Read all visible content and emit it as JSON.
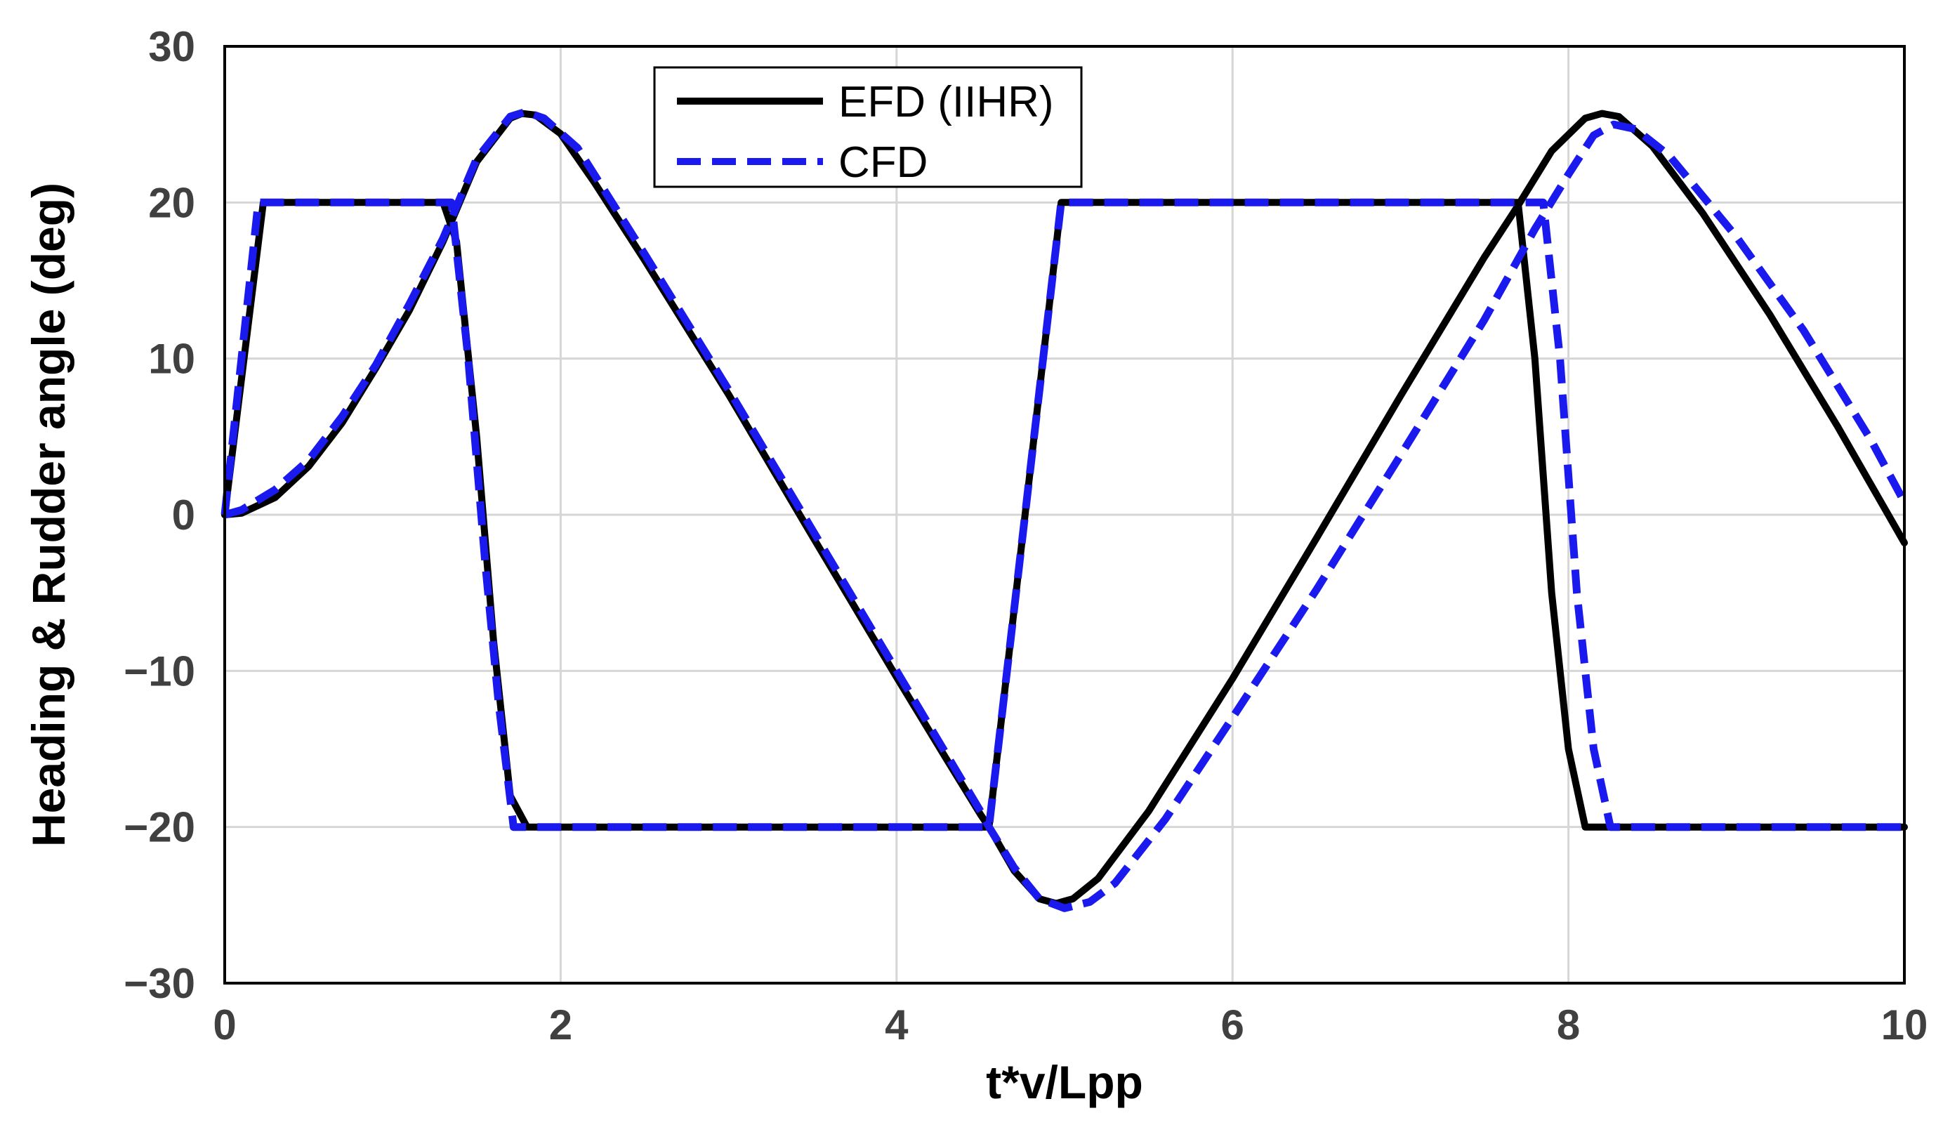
{
  "chart_data": {
    "type": "line",
    "title": "",
    "xlabel": "t*v/Lpp",
    "ylabel": "Heading & Rudder angle (deg)",
    "xlim": [
      0,
      10
    ],
    "ylim": [
      -30,
      30
    ],
    "xticks": [
      0,
      2,
      4,
      6,
      8,
      10
    ],
    "yticks": [
      -30,
      -20,
      -10,
      0,
      10,
      20,
      30
    ],
    "xtick_labels": [
      "0",
      "2",
      "4",
      "6",
      "8",
      "10"
    ],
    "ytick_labels": [
      "−30",
      "−20",
      "−10",
      "0",
      "10",
      "20",
      "30"
    ],
    "grid": true,
    "legend_position": "top-center",
    "legend": [
      {
        "label": "EFD (IIHR)",
        "color": "#000000",
        "style": "solid"
      },
      {
        "label": "CFD",
        "color": "#1a1aee",
        "style": "dashed"
      }
    ],
    "series": [
      {
        "name": "EFD (IIHR)",
        "kind": "heading",
        "color": "#000000",
        "style": "solid",
        "points": [
          [
            0,
            0
          ],
          [
            0.1,
            0.1
          ],
          [
            0.3,
            1.1
          ],
          [
            0.5,
            3.1
          ],
          [
            0.7,
            5.9
          ],
          [
            0.9,
            9.4
          ],
          [
            1.1,
            13.1
          ],
          [
            1.3,
            17.5
          ],
          [
            1.5,
            22.6
          ],
          [
            1.7,
            25.4
          ],
          [
            1.77,
            25.7
          ],
          [
            1.85,
            25.6
          ],
          [
            2.0,
            24.4
          ],
          [
            2.2,
            21.3
          ],
          [
            2.5,
            16.3
          ],
          [
            3.0,
            7.7
          ],
          [
            3.5,
            -1.4
          ],
          [
            4.0,
            -10.4
          ],
          [
            4.3,
            -15.7
          ],
          [
            4.5,
            -19.2
          ],
          [
            4.55,
            -20.0
          ],
          [
            4.7,
            -22.8
          ],
          [
            4.85,
            -24.6
          ],
          [
            4.95,
            -24.9
          ],
          [
            5.05,
            -24.6
          ],
          [
            5.2,
            -23.3
          ],
          [
            5.5,
            -19.0
          ],
          [
            6.0,
            -10.5
          ],
          [
            6.5,
            -1.5
          ],
          [
            7.0,
            7.6
          ],
          [
            7.5,
            16.5
          ],
          [
            7.7,
            19.8
          ],
          [
            7.9,
            23.3
          ],
          [
            8.1,
            25.4
          ],
          [
            8.2,
            25.7
          ],
          [
            8.3,
            25.5
          ],
          [
            8.5,
            23.6
          ],
          [
            8.8,
            19.3
          ],
          [
            9.2,
            12.8
          ],
          [
            9.6,
            5.7
          ],
          [
            10.0,
            -1.8
          ]
        ]
      },
      {
        "name": "EFD (IIHR)",
        "kind": "rudder",
        "color": "#000000",
        "style": "solid",
        "points": [
          [
            0,
            0
          ],
          [
            0.23,
            20
          ],
          [
            1.3,
            20
          ],
          [
            1.38,
            17.5
          ],
          [
            1.5,
            5
          ],
          [
            1.6,
            -8
          ],
          [
            1.7,
            -18
          ],
          [
            1.8,
            -20
          ],
          [
            4.55,
            -20
          ],
          [
            4.98,
            20
          ],
          [
            7.7,
            20
          ],
          [
            7.8,
            10
          ],
          [
            7.9,
            -5
          ],
          [
            8.0,
            -15
          ],
          [
            8.1,
            -20
          ],
          [
            10.0,
            -20
          ]
        ]
      },
      {
        "name": "CFD",
        "kind": "heading",
        "color": "#1a1aee",
        "style": "dashed",
        "points": [
          [
            0,
            0
          ],
          [
            0.1,
            0.3
          ],
          [
            0.3,
            1.6
          ],
          [
            0.5,
            3.5
          ],
          [
            0.7,
            6.3
          ],
          [
            0.9,
            9.6
          ],
          [
            1.1,
            13.5
          ],
          [
            1.3,
            17.7
          ],
          [
            1.5,
            22.8
          ],
          [
            1.7,
            25.5
          ],
          [
            1.79,
            25.8
          ],
          [
            1.9,
            25.4
          ],
          [
            2.1,
            23.5
          ],
          [
            2.5,
            16.7
          ],
          [
            3.0,
            8.0
          ],
          [
            3.5,
            -1.0
          ],
          [
            4.0,
            -10.0
          ],
          [
            4.3,
            -15.4
          ],
          [
            4.5,
            -19.0
          ],
          [
            4.55,
            -20.0
          ],
          [
            4.7,
            -22.6
          ],
          [
            4.85,
            -24.6
          ],
          [
            5.0,
            -25.2
          ],
          [
            5.15,
            -24.8
          ],
          [
            5.3,
            -23.6
          ],
          [
            5.6,
            -19.5
          ],
          [
            6.0,
            -13.0
          ],
          [
            6.5,
            -4.8
          ],
          [
            7.0,
            3.8
          ],
          [
            7.5,
            12.5
          ],
          [
            7.8,
            18.3
          ],
          [
            8.0,
            21.8
          ],
          [
            8.15,
            24.3
          ],
          [
            8.27,
            25.0
          ],
          [
            8.4,
            24.7
          ],
          [
            8.6,
            23.0
          ],
          [
            9.0,
            17.8
          ],
          [
            9.4,
            11.8
          ],
          [
            9.8,
            4.8
          ],
          [
            10.0,
            0.8
          ]
        ]
      },
      {
        "name": "CFD",
        "kind": "rudder",
        "color": "#1a1aee",
        "style": "dashed",
        "points": [
          [
            0,
            0
          ],
          [
            0.2,
            20
          ],
          [
            1.35,
            20
          ],
          [
            1.45,
            10
          ],
          [
            1.55,
            -3
          ],
          [
            1.63,
            -12
          ],
          [
            1.72,
            -20
          ],
          [
            4.55,
            -20
          ],
          [
            4.98,
            20
          ],
          [
            7.85,
            20
          ],
          [
            7.95,
            10
          ],
          [
            8.05,
            -5
          ],
          [
            8.15,
            -15
          ],
          [
            8.25,
            -20
          ],
          [
            10.0,
            -20
          ]
        ]
      }
    ]
  }
}
